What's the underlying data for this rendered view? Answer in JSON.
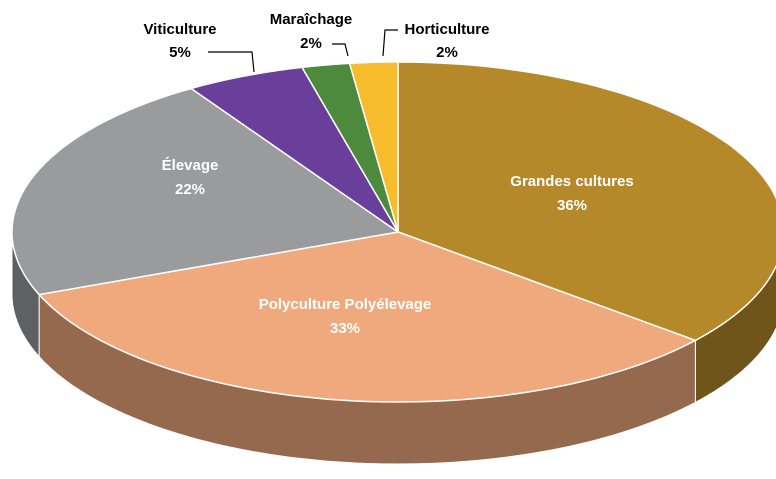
{
  "chart_data": {
    "type": "pie",
    "categories": [
      "Grandes cultures",
      "Polyculture Polyélevage",
      "Élevage",
      "Viticulture",
      "Maraîchage",
      "Horticulture"
    ],
    "values": [
      36,
      33,
      22,
      5,
      2,
      2
    ],
    "value_labels": [
      "36%",
      "33%",
      "22%",
      "5%",
      "2%",
      "2%"
    ],
    "colors": [
      "#b5892a",
      "#f0a97d",
      "#999b9c",
      "#6a3f9c",
      "#4e8a3e",
      "#f7bc2c"
    ]
  }
}
